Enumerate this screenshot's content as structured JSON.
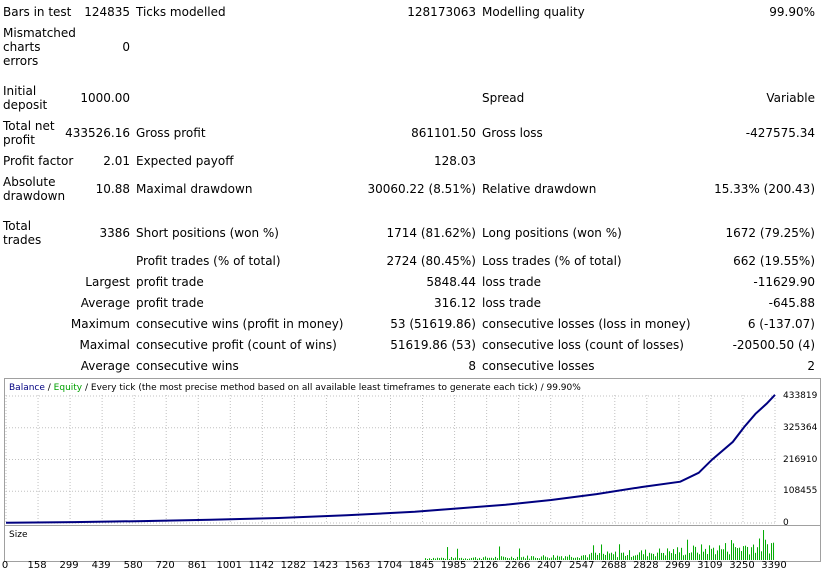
{
  "report": {
    "bars_in_test_label": "Bars in test",
    "bars_in_test_value": "124835",
    "ticks_modelled_label": "Ticks modelled",
    "ticks_modelled_value": "128173063",
    "modelling_quality_label": "Modelling quality",
    "modelling_quality_value": "99.90%",
    "mismatched_label": "Mismatched charts errors",
    "mismatched_value": "0",
    "initial_deposit_label": "Initial deposit",
    "initial_deposit_value": "1000.00",
    "spread_label": "Spread",
    "spread_value": "Variable",
    "total_net_profit_label": "Total net profit",
    "total_net_profit_value": "433526.16",
    "gross_profit_label": "Gross profit",
    "gross_profit_value": "861101.50",
    "gross_loss_label": "Gross loss",
    "gross_loss_value": "-427575.34",
    "profit_factor_label": "Profit factor",
    "profit_factor_value": "2.01",
    "expected_payoff_label": "Expected payoff",
    "expected_payoff_value": "128.03",
    "absolute_drawdown_label": "Absolute drawdown",
    "absolute_drawdown_value": "10.88",
    "maximal_drawdown_label": "Maximal drawdown",
    "maximal_drawdown_value": "30060.22 (8.51%)",
    "relative_drawdown_label": "Relative drawdown",
    "relative_drawdown_value": "15.33% (200.43)",
    "total_trades_label": "Total trades",
    "total_trades_value": "3386",
    "short_positions_label": "Short positions (won %)",
    "short_positions_value": "1714 (81.62%)",
    "long_positions_label": "Long positions (won %)",
    "long_positions_value": "1672 (79.25%)",
    "profit_trades_label": "Profit trades (% of total)",
    "profit_trades_value": "2724 (80.45%)",
    "loss_trades_label": "Loss trades (% of total)",
    "loss_trades_value": "662 (19.55%)",
    "largest_label": "Largest",
    "largest_profit_label": "profit trade",
    "largest_profit_value": "5848.44",
    "largest_loss_label": "loss trade",
    "largest_loss_value": "-11629.90",
    "average_label": "Average",
    "average_profit_label": "profit trade",
    "average_profit_value": "316.12",
    "average_loss_label": "loss trade",
    "average_loss_value": "-645.88",
    "maximum_label": "Maximum",
    "max_cons_wins_label": "consecutive wins (profit in money)",
    "max_cons_wins_value": "53 (51619.86)",
    "max_cons_losses_label": "consecutive losses (loss in money)",
    "max_cons_losses_value": "6 (-137.07)",
    "maximal_label": "Maximal",
    "maximal_cons_profit_label": "consecutive profit (count of wins)",
    "maximal_cons_profit_value": "51619.86 (53)",
    "maximal_cons_loss_label": "consecutive loss (count of losses)",
    "maximal_cons_loss_value": "-20500.50 (4)",
    "avg_label": "Average",
    "avg_cons_wins_label": "consecutive wins",
    "avg_cons_wins_value": "8",
    "avg_cons_losses_label": "consecutive losses",
    "avg_cons_losses_value": "2"
  },
  "chart_legend": {
    "balance": "Balance",
    "slash1": " / ",
    "equity": "Equity",
    "rest": " / Every tick (the most precise method based on all available least timeframes to generate each tick) / 99.90%"
  },
  "size_label": "Size",
  "colors": {
    "balance": "#000080",
    "equity": "#00a000",
    "size_bars": "#00aa00",
    "grid": "#c0c0c0"
  },
  "chart_data": {
    "type": "line",
    "x_ticks": [
      "0",
      "158",
      "299",
      "439",
      "580",
      "720",
      "861",
      "1001",
      "1142",
      "1282",
      "1423",
      "1563",
      "1704",
      "1845",
      "1985",
      "2126",
      "2266",
      "2407",
      "2547",
      "2688",
      "2828",
      "2969",
      "3109",
      "3250",
      "3390"
    ],
    "y_ticks": [
      "433819",
      "325364",
      "216910",
      "108455",
      "0"
    ],
    "ylim": [
      0,
      433819
    ],
    "xlim": [
      0,
      3386
    ],
    "series": [
      {
        "name": "Balance",
        "x": [
          0,
          300,
          600,
          900,
          1200,
          1500,
          1800,
          2000,
          2200,
          2400,
          2600,
          2800,
          2969,
          3050,
          3109,
          3200,
          3250,
          3300,
          3350,
          3386
        ],
        "y": [
          1000,
          3000,
          6500,
          11000,
          17000,
          26000,
          38000,
          50000,
          62000,
          78000,
          98000,
          122000,
          140000,
          170000,
          215000,
          275000,
          325000,
          370000,
          405000,
          434526
        ]
      }
    ],
    "size_bars_x_start": 1845,
    "size_bars_x_end": 3386
  }
}
